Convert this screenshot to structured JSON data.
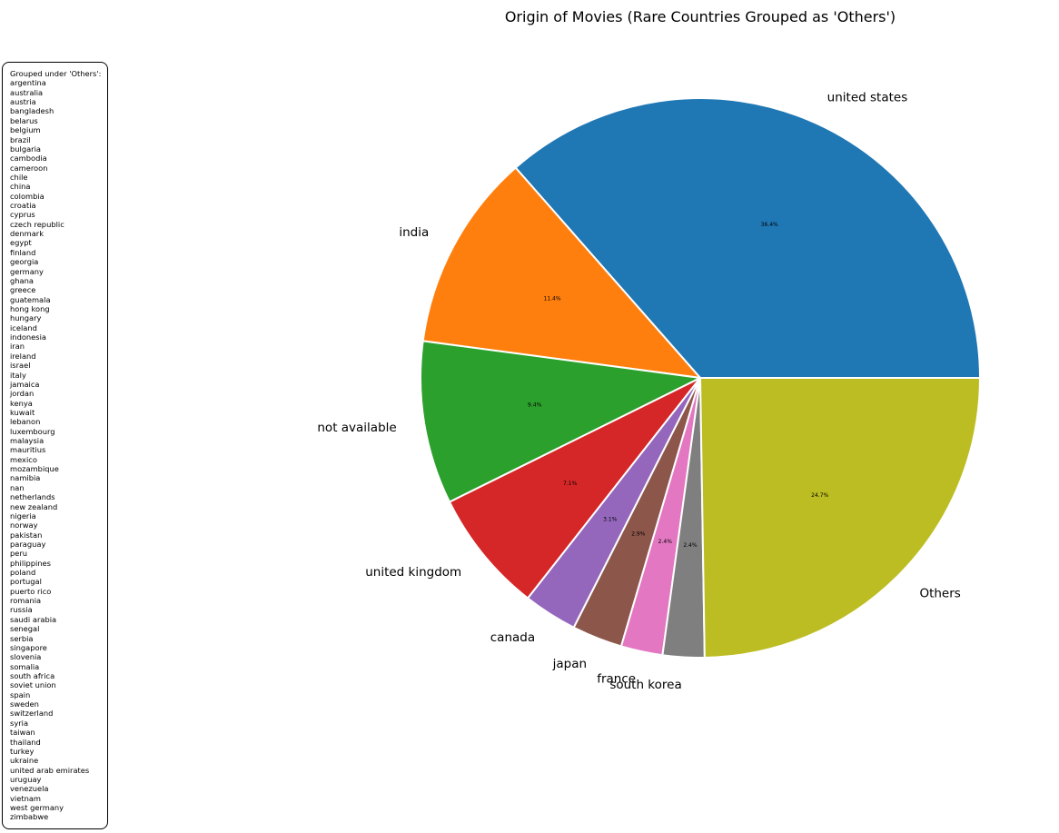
{
  "chart_data": {
    "type": "pie",
    "title": "Origin of Movies (Rare Countries Grouped as 'Others')",
    "slices": [
      {
        "label": "united states",
        "value": 36.4,
        "pct": "36.4%",
        "color": "#1f77b4"
      },
      {
        "label": "india",
        "value": 11.4,
        "pct": "11.4%",
        "color": "#ff7f0e"
      },
      {
        "label": "not available",
        "value": 9.4,
        "pct": "9.4%",
        "color": "#2ca02c"
      },
      {
        "label": "united kingdom",
        "value": 7.1,
        "pct": "7.1%",
        "color": "#d62728"
      },
      {
        "label": "canada",
        "value": 3.1,
        "pct": "3.1%",
        "color": "#9467bd"
      },
      {
        "label": "japan",
        "value": 2.9,
        "pct": "2.9%",
        "color": "#8c564b"
      },
      {
        "label": "france",
        "value": 2.4,
        "pct": "2.4%",
        "color": "#e377c2"
      },
      {
        "label": "south korea",
        "value": 2.4,
        "pct": "2.4%",
        "color": "#7f7f7f"
      },
      {
        "label": "Others",
        "value": 24.7,
        "pct": "24.7%",
        "color": "#bcbd22"
      }
    ],
    "start_angle_deg": 0,
    "direction": "counterclockwise",
    "edge_color": "#ffffff"
  },
  "others_box": {
    "heading": "Grouped under 'Others':",
    "items": [
      "argentina",
      "australia",
      "austria",
      "bangladesh",
      "belarus",
      "belgium",
      "brazil",
      "bulgaria",
      "cambodia",
      "cameroon",
      "chile",
      "china",
      "colombia",
      "croatia",
      "cyprus",
      "czech republic",
      "denmark",
      "egypt",
      "finland",
      "georgia",
      "germany",
      "ghana",
      "greece",
      "guatemala",
      "hong kong",
      "hungary",
      "iceland",
      "indonesia",
      "iran",
      "ireland",
      "israel",
      "italy",
      "jamaica",
      "jordan",
      "kenya",
      "kuwait",
      "lebanon",
      "luxembourg",
      "malaysia",
      "mauritius",
      "mexico",
      "mozambique",
      "namibia",
      "nan",
      "netherlands",
      "new zealand",
      "nigeria",
      "norway",
      "pakistan",
      "paraguay",
      "peru",
      "philippines",
      "poland",
      "portugal",
      "puerto rico",
      "romania",
      "russia",
      "saudi arabia",
      "senegal",
      "serbia",
      "singapore",
      "slovenia",
      "somalia",
      "south africa",
      "soviet union",
      "spain",
      "sweden",
      "switzerland",
      "syria",
      "taiwan",
      "thailand",
      "turkey",
      "ukraine",
      "united arab emirates",
      "uruguay",
      "venezuela",
      "vietnam",
      "west germany",
      "zimbabwe"
    ]
  }
}
